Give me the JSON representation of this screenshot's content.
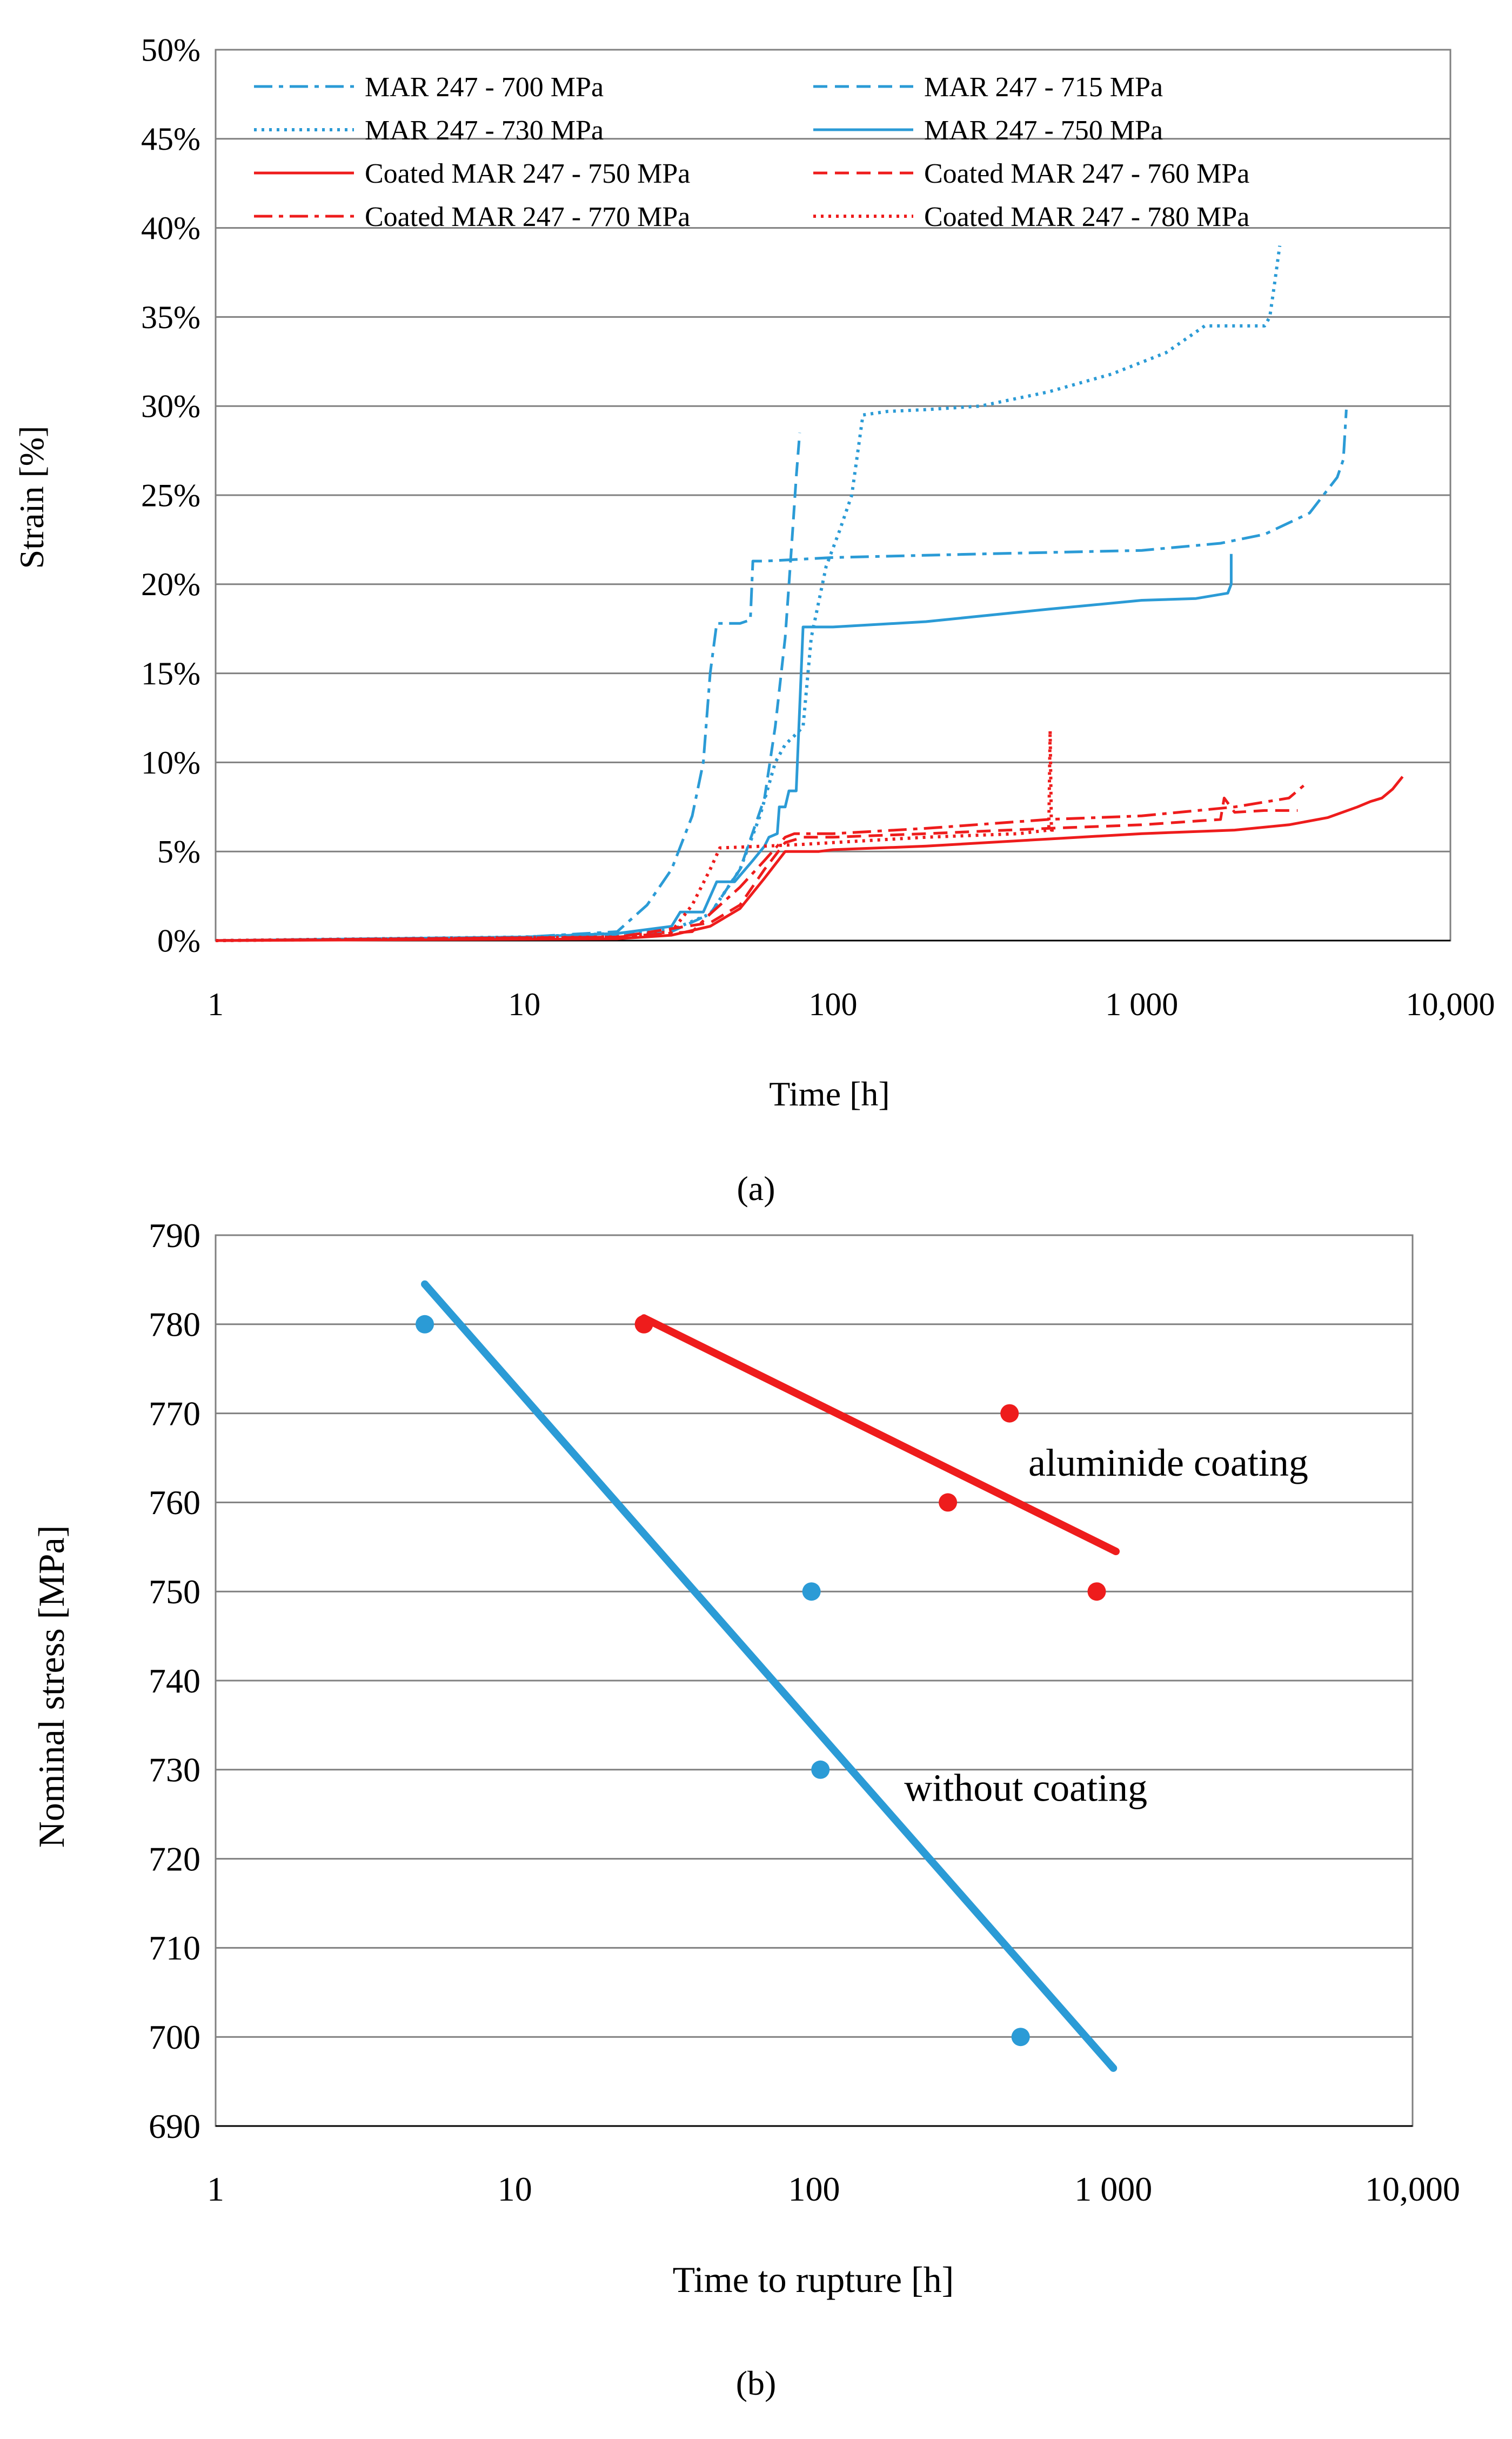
{
  "colors": {
    "blue": "#2b9bd6",
    "red": "#ee1c1c",
    "grid": "#808080",
    "axis": "#000000"
  },
  "chart_data": [
    {
      "type": "line",
      "panel_label": "(a)",
      "title": "",
      "xlabel": "Time [h]",
      "ylabel": "Strain [%]",
      "x_scale": "log",
      "xlim": [
        1,
        10000
      ],
      "ylim": [
        0,
        50
      ],
      "x_ticks": [
        1,
        10,
        100,
        1000,
        10000
      ],
      "x_tick_labels": [
        "1",
        "10",
        "100",
        "1 000",
        "10,000"
      ],
      "y_ticks": [
        0,
        5,
        10,
        15,
        20,
        25,
        30,
        35,
        40,
        45,
        50
      ],
      "y_tick_labels": [
        "0%",
        "5%",
        "10%",
        "15%",
        "20%",
        "25%",
        "30%",
        "35%",
        "40%",
        "45%",
        "50%"
      ],
      "grid": "horizontal",
      "legend_position": "top",
      "series": [
        {
          "name": "MAR 247 - 700 MPa",
          "color": "#2b9bd6",
          "dash": "dashdot",
          "x": [
            1,
            10,
            20,
            25,
            30,
            35,
            38,
            40,
            42,
            45,
            50,
            54,
            55,
            55.6,
            60,
            100,
            300,
            1000,
            1800,
            2500,
            3500,
            4300,
            4500,
            4600
          ],
          "y": [
            0,
            0.2,
            0.5,
            2,
            4,
            7,
            10,
            15,
            17.8,
            17.8,
            17.8,
            18,
            21.3,
            21.3,
            21.3,
            21.5,
            21.7,
            21.9,
            22.3,
            22.8,
            24,
            26,
            27,
            29.8
          ]
        },
        {
          "name": "MAR 247 - 715 MPa",
          "color": "#2b9bd6",
          "dash": "dash",
          "x": [
            1,
            10,
            20,
            30,
            40,
            50,
            60,
            65,
            70,
            72,
            74,
            76,
            78
          ],
          "y": [
            0,
            0.1,
            0.3,
            0.5,
            1.5,
            4,
            8,
            12,
            17,
            20,
            23,
            26,
            28.5
          ]
        },
        {
          "name": "MAR 247 - 730 MPa",
          "color": "#2b9bd6",
          "dash": "dot",
          "x": [
            1,
            10,
            20,
            30,
            40,
            50,
            58,
            65,
            70,
            75,
            80,
            85,
            95,
            105,
            115,
            125,
            150,
            200,
            300,
            500,
            800,
            1200,
            1600,
            1800,
            2200,
            2500,
            2600,
            2700,
            2800
          ],
          "y": [
            0,
            0.2,
            0.4,
            0.6,
            1.5,
            4,
            7,
            10,
            11,
            11.5,
            12,
            17,
            21,
            23,
            25,
            29.5,
            29.7,
            29.8,
            30,
            30.8,
            31.8,
            33,
            34.5,
            34.5,
            34.5,
            34.5,
            35,
            37,
            39
          ]
        },
        {
          "name": "MAR 247 - 750 MPa",
          "color": "#2b9bd6",
          "dash": "solid",
          "x": [
            1,
            10,
            20,
            30,
            32,
            38,
            42,
            48,
            55,
            60,
            62,
            66,
            67,
            70,
            72,
            76,
            80,
            100,
            200,
            500,
            1000,
            1500,
            1900,
            1950,
            1950
          ],
          "y": [
            0,
            0.2,
            0.4,
            0.8,
            1.6,
            1.6,
            3.3,
            3.3,
            4.5,
            5.3,
            5.8,
            6,
            7.5,
            7.5,
            8.4,
            8.4,
            17.6,
            17.6,
            17.9,
            18.6,
            19.1,
            19.2,
            19.5,
            20,
            21.7
          ]
        },
        {
          "name": "Coated MAR 247 - 750 MPa",
          "color": "#ee1c1c",
          "dash": "solid",
          "x": [
            1,
            20,
            30,
            40,
            50,
            60,
            70,
            80,
            90,
            100,
            200,
            500,
            1000,
            2000,
            3000,
            4000,
            5000,
            5500,
            6000,
            6500,
            7000
          ],
          "y": [
            0,
            0.1,
            0.3,
            0.8,
            1.8,
            3.5,
            5,
            5,
            5,
            5.1,
            5.3,
            5.7,
            6,
            6.2,
            6.5,
            6.9,
            7.5,
            7.8,
            8,
            8.5,
            9.2
          ]
        },
        {
          "name": "Coated MAR 247 - 760 MPa",
          "color": "#ee1c1c",
          "dash": "dash",
          "x": [
            1,
            20,
            40,
            50,
            60,
            70,
            80,
            100,
            200,
            500,
            1000,
            1800,
            1850,
            2000,
            2500,
            3200
          ],
          "y": [
            0,
            0.2,
            1,
            2,
            4,
            5.5,
            5.8,
            5.8,
            6,
            6.3,
            6.5,
            6.8,
            8,
            7.2,
            7.3,
            7.3
          ]
        },
        {
          "name": "Coated MAR 247 - 770 MPa",
          "color": "#ee1c1c",
          "dash": "dashdot",
          "x": [
            1,
            20,
            35,
            40,
            50,
            60,
            70,
            75,
            80,
            100,
            200,
            500,
            1000,
            2000,
            3000,
            3400
          ],
          "y": [
            0,
            0.2,
            0.5,
            1.5,
            3,
            4.5,
            5.8,
            6,
            6,
            6,
            6.3,
            6.8,
            7,
            7.5,
            8,
            8.8
          ]
        },
        {
          "name": "Coated MAR 247 - 780 MPa",
          "color": "#ee1c1c",
          "dash": "dot",
          "x": [
            1,
            20,
            30,
            35,
            40,
            43,
            60,
            80,
            100,
            200,
            400,
            500,
            505,
            510,
            520
          ],
          "y": [
            0,
            0.2,
            0.5,
            2,
            4,
            5.2,
            5.3,
            5.4,
            5.5,
            5.8,
            6,
            6.2,
            11.8,
            6.2,
            6.2
          ]
        }
      ]
    },
    {
      "type": "scatter",
      "panel_label": "(b)",
      "title": "",
      "xlabel": "Time to rupture [h]",
      "ylabel": "Nominal stress [MPa]",
      "x_scale": "log",
      "xlim": [
        1,
        10000
      ],
      "ylim": [
        690,
        790
      ],
      "x_ticks": [
        1,
        10,
        100,
        1000,
        10000
      ],
      "x_tick_labels": [
        "1",
        "10",
        "100",
        "1 000",
        "10,000"
      ],
      "y_ticks": [
        690,
        700,
        710,
        720,
        730,
        740,
        750,
        760,
        770,
        780,
        790
      ],
      "y_tick_labels": [
        "690",
        "700",
        "710",
        "720",
        "730",
        "740",
        "750",
        "760",
        "770",
        "780",
        "790"
      ],
      "grid": "horizontal",
      "series": [
        {
          "name": "without coating",
          "color": "#2b9bd6",
          "points": [
            {
              "x": 5,
              "y": 780
            },
            {
              "x": 98,
              "y": 750
            },
            {
              "x": 105,
              "y": 730
            },
            {
              "x": 490,
              "y": 700
            }
          ],
          "trendline": [
            {
              "x": 5,
              "y": 784.5
            },
            {
              "x": 1000,
              "y": 696.5
            }
          ]
        },
        {
          "name": "aluminide coating",
          "color": "#ee1c1c",
          "points": [
            {
              "x": 27,
              "y": 780
            },
            {
              "x": 280,
              "y": 760
            },
            {
              "x": 450,
              "y": 770
            },
            {
              "x": 880,
              "y": 750
            }
          ],
          "trendline": [
            {
              "x": 27,
              "y": 780.7
            },
            {
              "x": 1020,
              "y": 754.5
            }
          ]
        }
      ],
      "annotations": [
        {
          "text": "aluminide coating",
          "x": 520,
          "y": 763
        },
        {
          "text": "without coating",
          "x": 200,
          "y": 726.5
        }
      ]
    }
  ]
}
